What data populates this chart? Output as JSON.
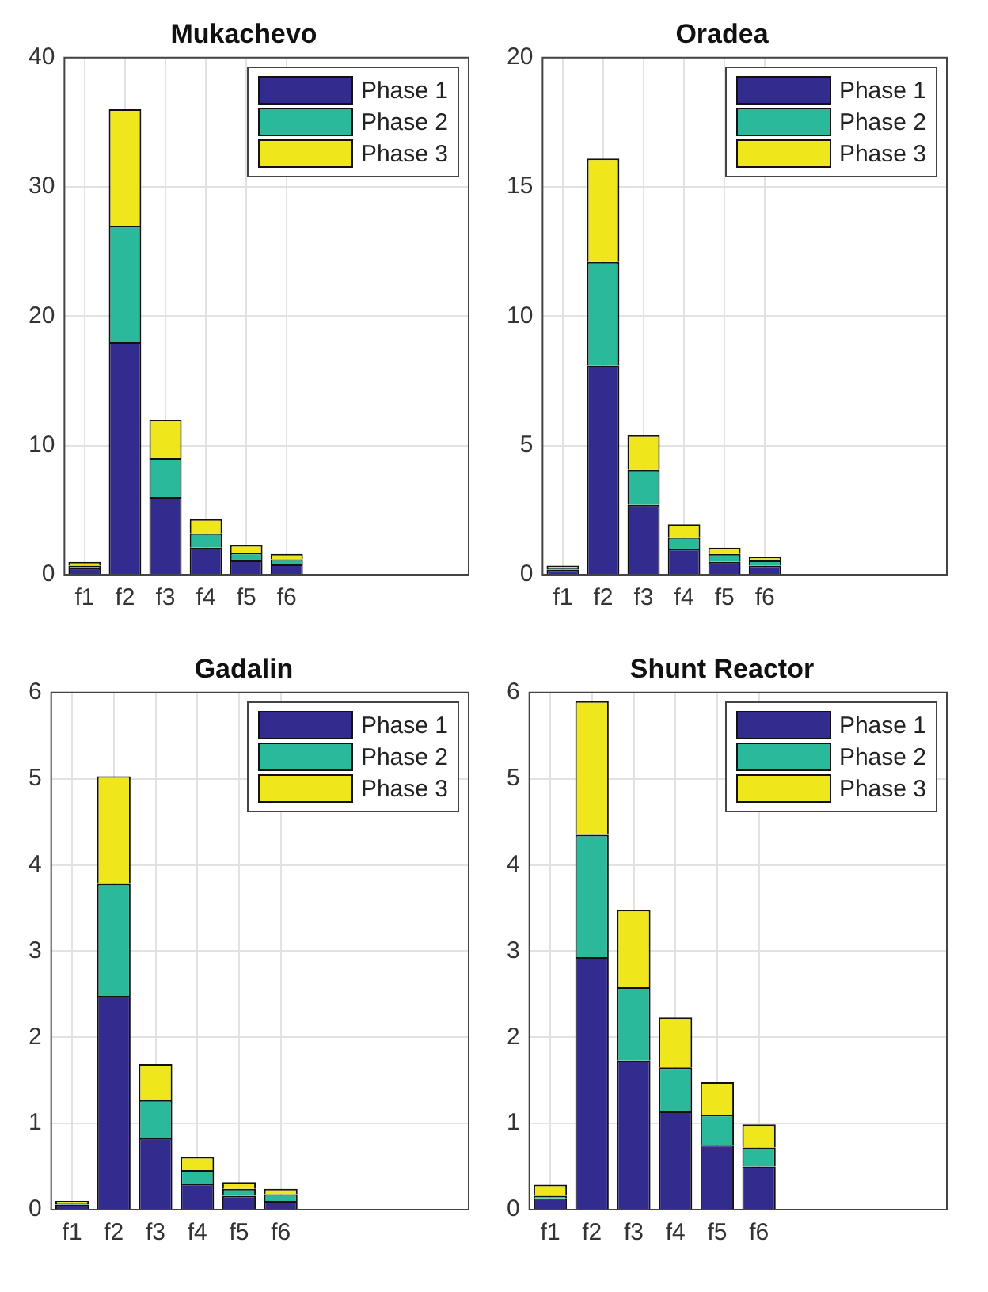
{
  "chart_data": [
    {
      "type": "bar",
      "title": "Mukachevo",
      "stacked": true,
      "categories": [
        "f1",
        "f2",
        "f3",
        "f4",
        "f5",
        "f6",
        null,
        null,
        null,
        null
      ],
      "ylim": [
        0,
        40
      ],
      "yticks": [
        0,
        10,
        20,
        30,
        40
      ],
      "grid": true,
      "legend": "top right",
      "series": [
        {
          "name": "Phase 1",
          "color": "#332c8f",
          "values": [
            0.5,
            18,
            6,
            2.1,
            1.1,
            0.8,
            null,
            null,
            null,
            null
          ]
        },
        {
          "name": "Phase 2",
          "color": "#2ab99a",
          "values": [
            0.2,
            9,
            3,
            1.1,
            0.6,
            0.4,
            null,
            null,
            null,
            null
          ]
        },
        {
          "name": "Phase 3",
          "color": "#f0e61c",
          "values": [
            0.3,
            9,
            3,
            1.1,
            0.6,
            0.4,
            null,
            null,
            null,
            null
          ]
        }
      ]
    },
    {
      "type": "bar",
      "title": "Oradea",
      "stacked": true,
      "categories": [
        "f1",
        "f2",
        "f3",
        "f4",
        "f5",
        "f6",
        null,
        null,
        null,
        null
      ],
      "ylim": [
        0,
        20
      ],
      "yticks": [
        0,
        5,
        10,
        15,
        20
      ],
      "grid": true,
      "legend": "top right",
      "series": [
        {
          "name": "Phase 1",
          "color": "#332c8f",
          "values": [
            0.2,
            8.1,
            2.7,
            1.0,
            0.5,
            0.35,
            null,
            null,
            null,
            null
          ]
        },
        {
          "name": "Phase 2",
          "color": "#2ab99a",
          "values": [
            0.05,
            4.0,
            1.35,
            0.45,
            0.3,
            0.2,
            null,
            null,
            null,
            null
          ]
        },
        {
          "name": "Phase 3",
          "color": "#f0e61c",
          "values": [
            0.1,
            4.0,
            1.35,
            0.5,
            0.25,
            0.15,
            null,
            null,
            null,
            null
          ]
        }
      ]
    },
    {
      "type": "bar",
      "title": "Gadalin",
      "stacked": true,
      "categories": [
        "f1",
        "f2",
        "f3",
        "f4",
        "f5",
        "f6",
        null,
        null,
        null,
        null
      ],
      "ylim": [
        0,
        6
      ],
      "yticks": [
        0,
        1,
        2,
        3,
        4,
        5,
        6
      ],
      "grid": true,
      "legend": "top right",
      "series": [
        {
          "name": "Phase 1",
          "color": "#332c8f",
          "values": [
            0.06,
            2.48,
            0.83,
            0.3,
            0.16,
            0.1,
            null,
            null,
            null,
            null
          ]
        },
        {
          "name": "Phase 2",
          "color": "#2ab99a",
          "values": [
            0.02,
            1.3,
            0.44,
            0.16,
            0.08,
            0.08,
            null,
            null,
            null,
            null
          ]
        },
        {
          "name": "Phase 3",
          "color": "#f0e61c",
          "values": [
            0.02,
            1.25,
            0.42,
            0.15,
            0.08,
            0.06,
            null,
            null,
            null,
            null
          ]
        }
      ]
    },
    {
      "type": "bar",
      "title": "Shunt Reactor",
      "stacked": true,
      "categories": [
        "f1",
        "f2",
        "f3",
        "f4",
        "f5",
        "f6",
        null,
        null,
        null,
        null
      ],
      "ylim": [
        0,
        6
      ],
      "yticks": [
        0,
        1,
        2,
        3,
        4,
        5,
        6
      ],
      "grid": true,
      "legend": "top right",
      "series": [
        {
          "name": "Phase 1",
          "color": "#332c8f",
          "values": [
            0.13,
            2.93,
            1.73,
            1.14,
            0.75,
            0.5,
            null,
            null,
            null,
            null
          ]
        },
        {
          "name": "Phase 2",
          "color": "#2ab99a",
          "values": [
            0.03,
            1.42,
            0.85,
            0.51,
            0.35,
            0.22,
            null,
            null,
            null,
            null
          ]
        },
        {
          "name": "Phase 3",
          "color": "#f0e61c",
          "values": [
            0.13,
            1.55,
            0.9,
            0.58,
            0.38,
            0.27,
            null,
            null,
            null,
            null
          ]
        }
      ]
    }
  ]
}
